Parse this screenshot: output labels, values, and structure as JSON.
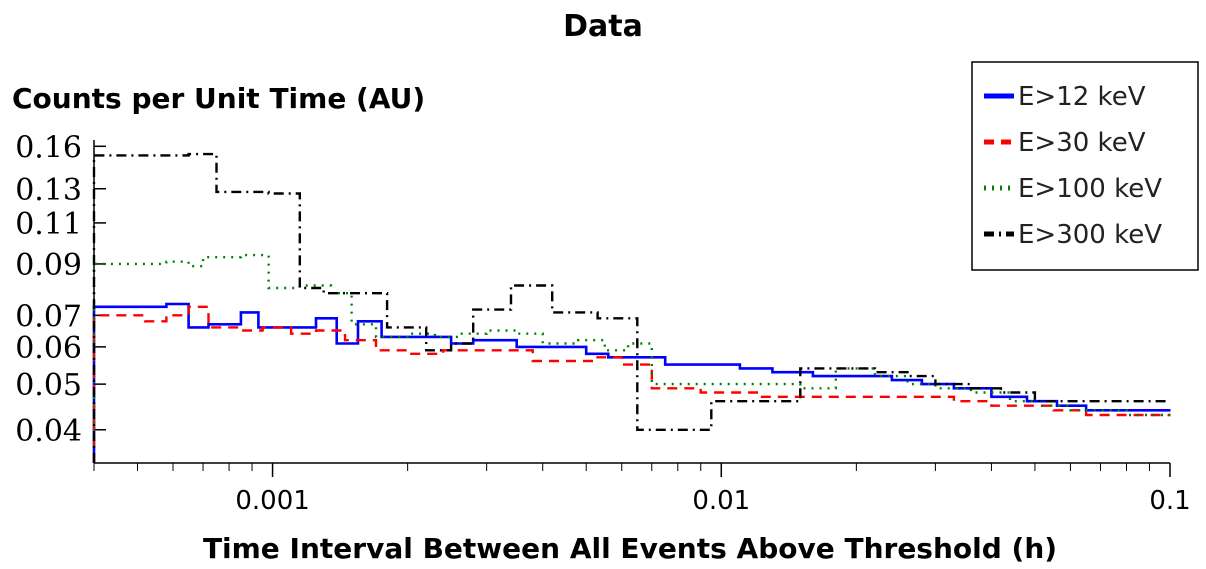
{
  "chart_data": {
    "type": "line",
    "title": "Data",
    "xlabel": "Time Interval Between All Events Above Threshold (h)",
    "ylabel": "Counts per Unit Time (AU)",
    "xscale": "log",
    "yscale": "log",
    "xlim": [
      0.0004,
      0.1
    ],
    "ylim": [
      0.034,
      0.165
    ],
    "x_ticks": [
      0.001,
      0.01,
      0.1
    ],
    "x_tick_labels": [
      "0.001",
      "0.01",
      "0.1"
    ],
    "y_ticks": [
      0.04,
      0.05,
      0.06,
      0.07,
      0.09,
      0.11,
      0.13,
      0.16
    ],
    "y_tick_labels": [
      "0.04",
      "0.05",
      "0.06",
      "0.07",
      "0.09",
      "0.11",
      "0.13",
      "0.16"
    ],
    "grid": false,
    "legend_position": "top-right",
    "series": [
      {
        "name": "E>12 keV",
        "color": "#0000ff",
        "style": "solid",
        "x": [
          0.0004,
          0.00048,
          0.00058,
          0.00065,
          0.00072,
          0.00085,
          0.00093,
          0.00105,
          0.00125,
          0.00139,
          0.00155,
          0.00175,
          0.0021,
          0.0025,
          0.0028,
          0.0035,
          0.0042,
          0.005,
          0.0056,
          0.0064,
          0.0075,
          0.0088,
          0.011,
          0.013,
          0.016,
          0.02,
          0.024,
          0.028,
          0.033,
          0.04,
          0.048,
          0.056,
          0.065,
          0.08
        ],
        "y": [
          0.073,
          0.073,
          0.074,
          0.066,
          0.067,
          0.071,
          0.066,
          0.066,
          0.069,
          0.061,
          0.068,
          0.063,
          0.063,
          0.061,
          0.062,
          0.06,
          0.06,
          0.058,
          0.057,
          0.057,
          0.055,
          0.055,
          0.054,
          0.053,
          0.052,
          0.052,
          0.051,
          0.05,
          0.049,
          0.047,
          0.046,
          0.045,
          0.044,
          0.044
        ]
      },
      {
        "name": "E>30 keV",
        "color": "#ff0000",
        "style": "dashed",
        "x": [
          0.0004,
          0.00052,
          0.00058,
          0.00065,
          0.00072,
          0.00085,
          0.00095,
          0.0011,
          0.00125,
          0.00145,
          0.0017,
          0.002,
          0.0024,
          0.0028,
          0.0032,
          0.0038,
          0.0045,
          0.0052,
          0.006,
          0.007,
          0.009,
          0.012,
          0.015,
          0.018,
          0.022,
          0.027,
          0.033,
          0.04,
          0.045,
          0.055,
          0.065,
          0.08
        ],
        "y": [
          0.07,
          0.068,
          0.07,
          0.073,
          0.066,
          0.065,
          0.066,
          0.064,
          0.065,
          0.062,
          0.059,
          0.058,
          0.059,
          0.059,
          0.059,
          0.056,
          0.056,
          0.057,
          0.055,
          0.049,
          0.048,
          0.047,
          0.047,
          0.047,
          0.047,
          0.047,
          0.046,
          0.045,
          0.045,
          0.044,
          0.043,
          0.043
        ]
      },
      {
        "name": "E>100 keV",
        "color": "#008000",
        "style": "dotted",
        "x": [
          0.0004,
          0.00052,
          0.00058,
          0.00065,
          0.0007,
          0.00085,
          0.00098,
          0.00115,
          0.00135,
          0.0015,
          0.0017,
          0.002,
          0.0023,
          0.0026,
          0.003,
          0.0035,
          0.004,
          0.0048,
          0.0055,
          0.0062,
          0.007,
          0.0085,
          0.01,
          0.012,
          0.015,
          0.018,
          0.022,
          0.026,
          0.03,
          0.036,
          0.044,
          0.052,
          0.06,
          0.08
        ],
        "y": [
          0.09,
          0.09,
          0.091,
          0.089,
          0.093,
          0.094,
          0.08,
          0.081,
          0.078,
          0.067,
          0.063,
          0.064,
          0.063,
          0.064,
          0.065,
          0.064,
          0.061,
          0.062,
          0.059,
          0.061,
          0.05,
          0.05,
          0.05,
          0.05,
          0.049,
          0.054,
          0.052,
          0.05,
          0.049,
          0.048,
          0.046,
          0.045,
          0.044,
          0.043
        ]
      },
      {
        "name": "E>300 keV",
        "color": "#000000",
        "style": "dashdot",
        "x": [
          0.0004,
          0.00058,
          0.00065,
          0.00075,
          0.00098,
          0.00115,
          0.0013,
          0.0016,
          0.0018,
          0.0022,
          0.0025,
          0.0028,
          0.0034,
          0.0042,
          0.0053,
          0.0065,
          0.0082,
          0.0095,
          0.012,
          0.015,
          0.018,
          0.022,
          0.026,
          0.03,
          0.036,
          0.042,
          0.05,
          0.065,
          0.08
        ],
        "y": [
          0.153,
          0.153,
          0.154,
          0.128,
          0.127,
          0.08,
          0.078,
          0.078,
          0.066,
          0.059,
          0.061,
          0.072,
          0.081,
          0.071,
          0.069,
          0.04,
          0.04,
          0.046,
          0.046,
          0.054,
          0.054,
          0.053,
          0.052,
          0.05,
          0.049,
          0.048,
          0.046,
          0.046,
          0.046
        ]
      }
    ]
  }
}
